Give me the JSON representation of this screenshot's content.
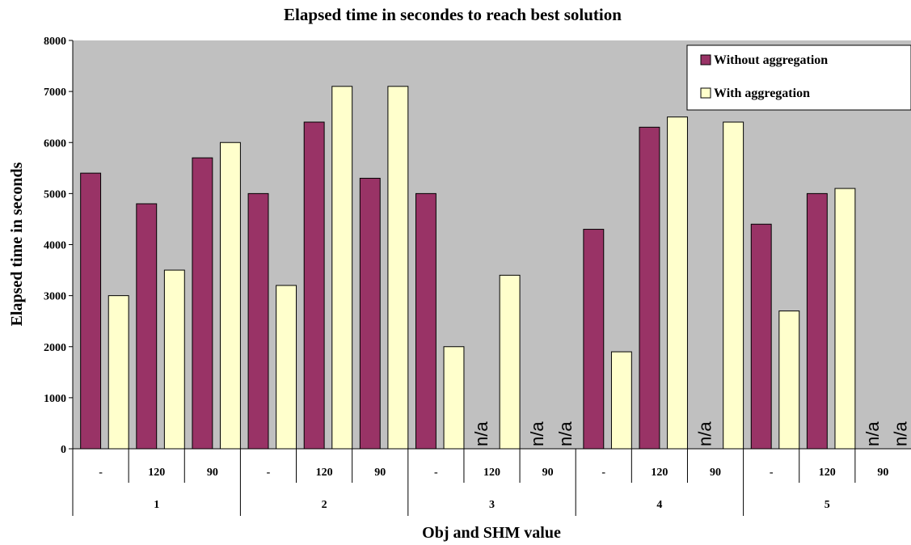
{
  "chart_data": {
    "type": "bar",
    "title": "Elapsed time in secondes to reach best solution",
    "xlabel": "Obj and SHM value",
    "ylabel": "Elapsed time in seconds",
    "ylim": [
      0,
      8000
    ],
    "yticks": [
      "0",
      "1000",
      "2000",
      "3000",
      "4000",
      "5000",
      "6000",
      "7000",
      "8000"
    ],
    "grid": false,
    "legend_position": "top-right",
    "groups": [
      {
        "label": "1",
        "subcategories": [
          "-",
          "120",
          "90"
        ]
      },
      {
        "label": "2",
        "subcategories": [
          "-",
          "120",
          "90"
        ]
      },
      {
        "label": "3",
        "subcategories": [
          "-",
          "120",
          "90"
        ]
      },
      {
        "label": "4",
        "subcategories": [
          "-",
          "120",
          "90"
        ]
      },
      {
        "label": "5",
        "subcategories": [
          "-",
          "120",
          "90"
        ]
      }
    ],
    "series": [
      {
        "name": "Without aggregation",
        "color": "#993366",
        "values": [
          5400,
          4800,
          5700,
          5000,
          6400,
          5300,
          5000,
          null,
          null,
          4300,
          6300,
          null,
          4400,
          5000,
          null
        ]
      },
      {
        "name": "With aggregation",
        "color": "#ffffcc",
        "values": [
          3000,
          3500,
          6000,
          3200,
          7100,
          7100,
          2000,
          3400,
          null,
          1900,
          6500,
          6400,
          2700,
          5100,
          null
        ]
      }
    ],
    "missing_label": "n/a",
    "plot_background": "#c0c0c0"
  }
}
